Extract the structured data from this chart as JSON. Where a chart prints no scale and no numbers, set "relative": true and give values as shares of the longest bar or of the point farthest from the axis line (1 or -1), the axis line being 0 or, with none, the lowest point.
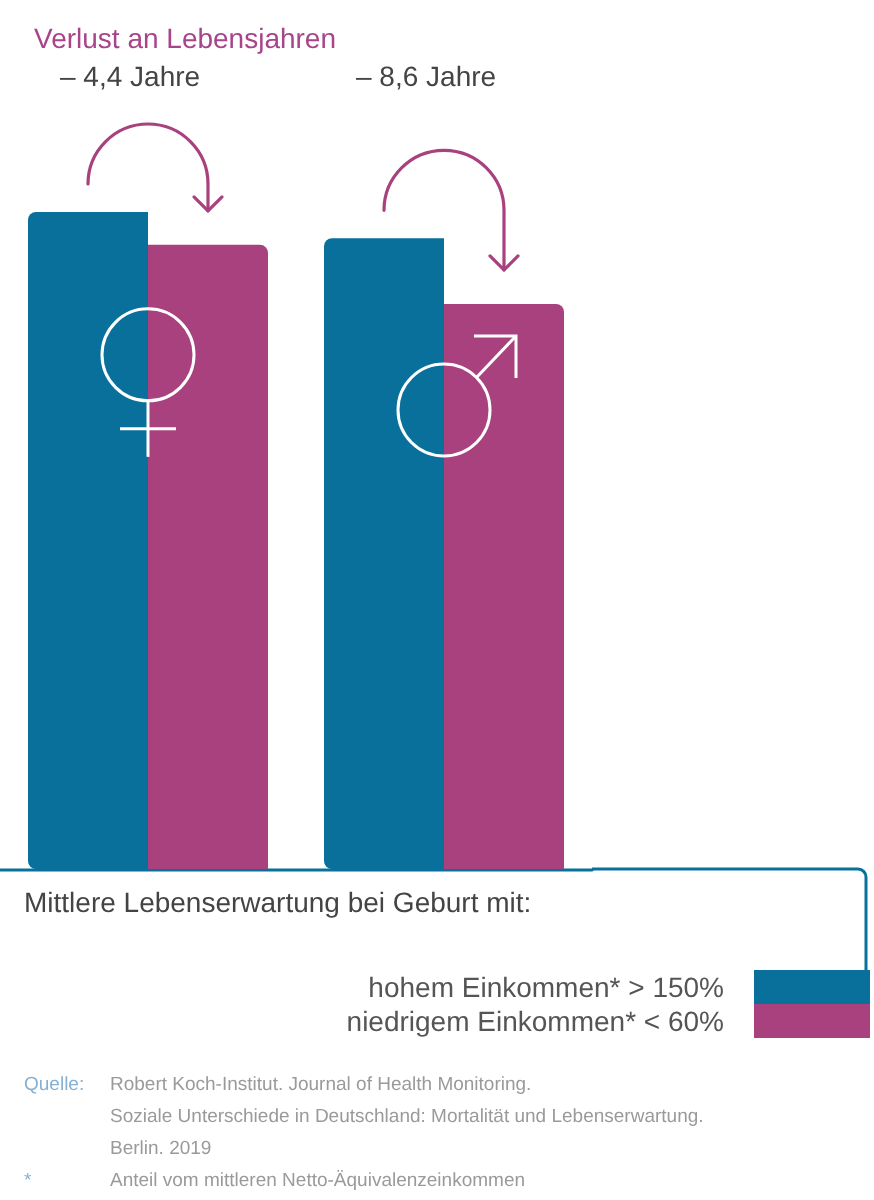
{
  "chart_data": {
    "type": "bar",
    "title": "Verlust an Lebensjahren",
    "legend_title": "Mittlere Lebenserwartung bei Geburt mit:",
    "categories": [
      null,
      null
    ],
    "relative": true,
    "series": [
      {
        "name": "hohem Einkommen* > 150%",
        "color": "#08709a",
        "values": [
          1,
          0.96
        ]
      },
      {
        "name": "niedrigem Einkommen* < 60%",
        "color": "#a9417f",
        "values": [
          0.95,
          0.86
        ]
      }
    ],
    "legend": "bottom right",
    "annotations": [
      "– 4,4 Jahre",
      "– 8,6 Jahre",
      "Quelle:\tRobert Koch-Institut. Journal of Health Monitoring.\nSoziale Unterschiede in Deutschland: Mortalität und Lebenserwartung.\nBerlin. 2019",
      "*\tAnteil vom mittleren Netto-Äquivalenzeinkommen"
    ]
  }
}
